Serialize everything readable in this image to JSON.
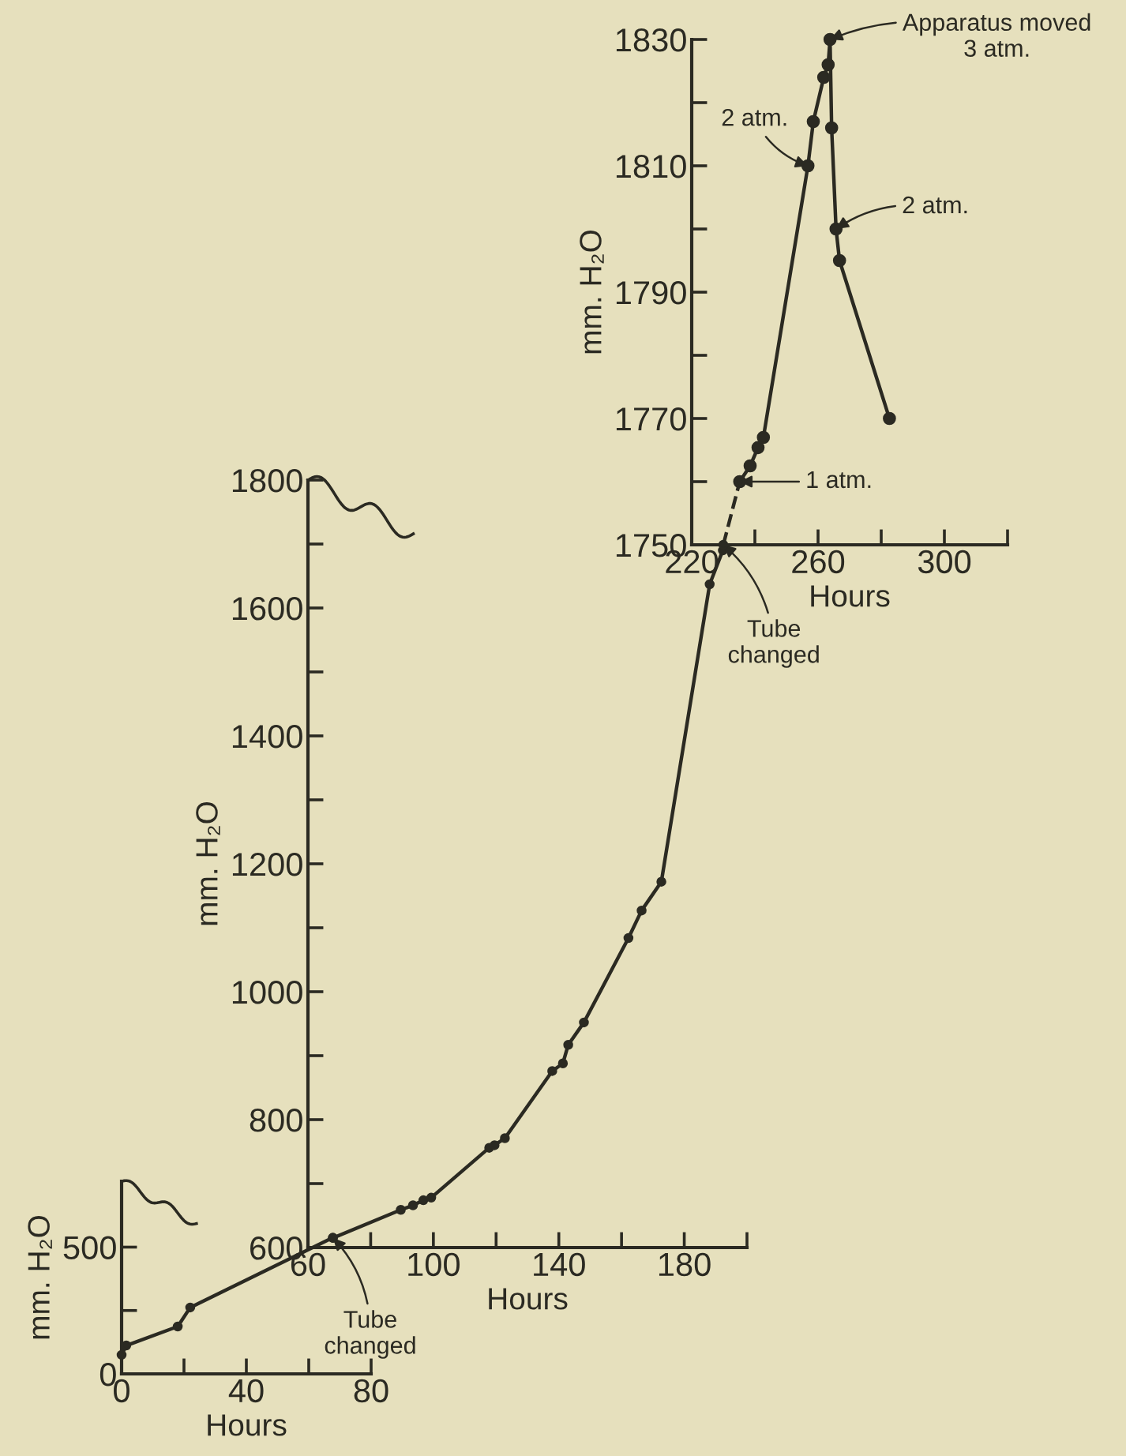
{
  "chart_data": [
    {
      "type": "line",
      "xlabel": "Hours",
      "ylabel": "mm. H₂O",
      "xlim": [
        0,
        80
      ],
      "ylim": [
        0,
        760
      ],
      "xticks": [
        0,
        {
          "value": 20,
          "label": null
        },
        40,
        {
          "value": 60,
          "label": null
        },
        80
      ],
      "yticks": [
        0,
        {
          "value": 250,
          "label": null
        },
        500
      ],
      "marker": "circle",
      "series": [
        {
          "color": "#2b2a22",
          "x": [
            0,
            1.5,
            18,
            22,
            67.7
          ],
          "values": [
            75,
            112,
            187,
            262,
            537
          ]
        }
      ]
    },
    {
      "type": "line",
      "xlabel": "Hours",
      "ylabel": "mm. H₂O",
      "xlim": [
        60,
        200
      ],
      "ylim": [
        600,
        1800
      ],
      "xticks": [
        60,
        {
          "value": 80,
          "label": null
        },
        100,
        {
          "value": 120,
          "label": null
        },
        140,
        {
          "value": 160,
          "label": null
        },
        180,
        {
          "value": 200,
          "label": null
        }
      ],
      "yticks": [
        600,
        {
          "value": 700,
          "label": null
        },
        800,
        {
          "value": 900,
          "label": null
        },
        1000,
        {
          "value": 1100,
          "label": null
        },
        1200,
        {
          "value": 1300,
          "label": null
        },
        1400,
        {
          "value": 1500,
          "label": null
        },
        1600,
        {
          "value": 1700,
          "label": null
        },
        1800
      ],
      "marker": "circle",
      "series": [
        {
          "color": "#2b2a22",
          "x": [
            68,
            89.6,
            93.5,
            96.8,
            99.3,
            117.8,
            119.5,
            122.8,
            137.9,
            141.3,
            143,
            148,
            162.2,
            166.4,
            172.7,
            188.1,
            192.3
          ],
          "values": [
            615,
            659,
            666,
            674,
            678,
            756,
            760,
            771,
            876,
            888,
            917,
            952,
            1084,
            1127,
            1172,
            1637,
            1690
          ]
        }
      ],
      "annotations": [
        {
          "text": "Tube\nchanged",
          "x": 68,
          "y": 615
        }
      ]
    },
    {
      "type": "line",
      "xlabel": "Hours",
      "ylabel": "mm. H₂O",
      "xlim": [
        220,
        320
      ],
      "ylim": [
        1750,
        1830
      ],
      "xticks": [
        220,
        {
          "value": 240,
          "label": null
        },
        260,
        {
          "value": 280,
          "label": null
        },
        300,
        {
          "value": 320,
          "label": null
        }
      ],
      "yticks": [
        1750,
        {
          "value": 1760,
          "label": null
        },
        1770,
        {
          "value": 1780,
          "label": null
        },
        1790,
        {
          "value": 1800,
          "label": null
        },
        1810,
        {
          "value": 1820,
          "label": null
        },
        1830
      ],
      "marker": "circle",
      "series": [
        {
          "color": "#2b2a22",
          "line_style": "dashed",
          "x": [
            230,
            235.2
          ],
          "values": [
            1750,
            1760
          ]
        },
        {
          "color": "#2b2a22",
          "line_style": "solid",
          "x": [
            235.2,
            238.5,
            241,
            242.7,
            256.8,
            258.5,
            261.8,
            263.2,
            263.8,
            264.3,
            265.7,
            266.8,
            282.6
          ],
          "values": [
            1760,
            1762.5,
            1765.4,
            1767,
            1810,
            1817,
            1824,
            1826,
            1830,
            1816,
            1800,
            1795,
            1770
          ]
        }
      ],
      "annotations": [
        {
          "text": "Apparatus moved\n3 atm.",
          "x": 263.8,
          "y": 1830
        },
        {
          "text": "2 atm.",
          "x": 256.8,
          "y": 1810
        },
        {
          "text": "2 atm.",
          "x": 265.7,
          "y": 1800
        },
        {
          "text": "1 atm.",
          "x": 235.2,
          "y": 1760
        },
        {
          "text": "Tube\nchanged",
          "x": 230,
          "y": 1750
        }
      ]
    }
  ]
}
